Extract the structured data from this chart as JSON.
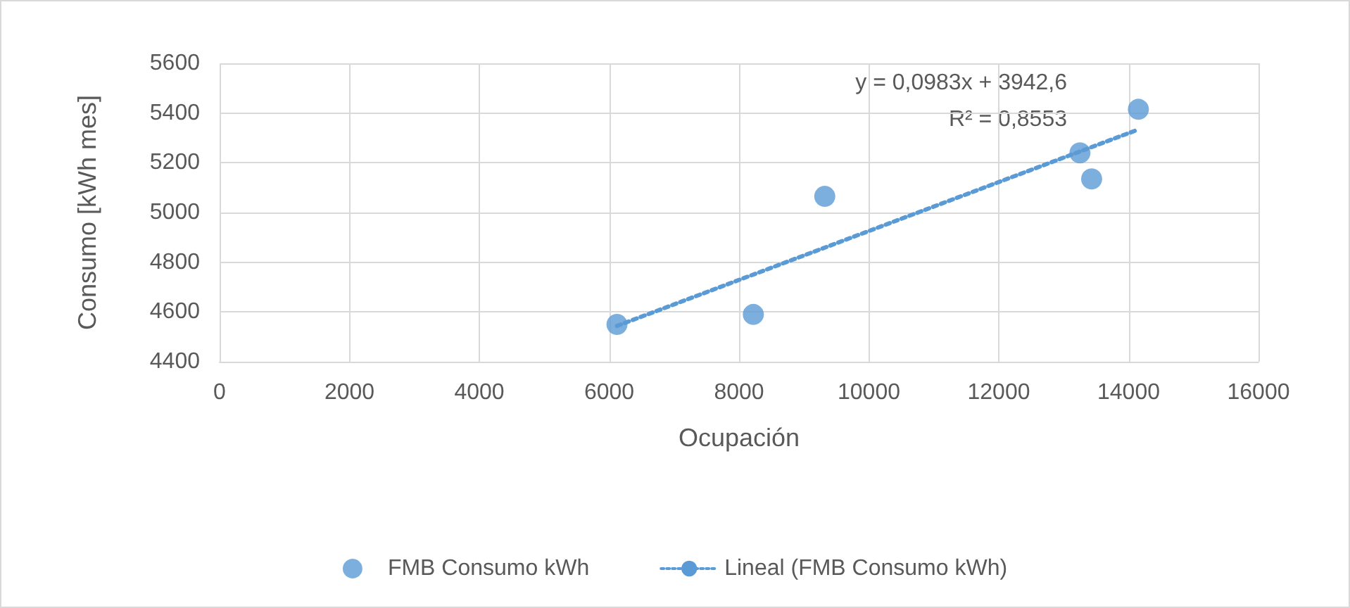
{
  "chart_data": {
    "type": "scatter",
    "xlabel": "Ocupación",
    "ylabel": "Consumo [kWh mes]",
    "xlim": [
      0,
      16000
    ],
    "xticks": [
      0,
      2000,
      4000,
      6000,
      8000,
      10000,
      12000,
      14000,
      16000
    ],
    "ylim": [
      4400,
      5600
    ],
    "yticks": [
      4400,
      4600,
      4800,
      5000,
      5200,
      5400,
      5600
    ],
    "grid": true,
    "legend": "bottom",
    "marker": "circle",
    "annotations": [
      "y = 0,0983x + 3942,6",
      "R² = 0,8553"
    ],
    "series": [
      {
        "name": "FMB Consumo kWh",
        "color": "#5b9bd5",
        "x": [
          6120,
          8220,
          9320,
          13250,
          13430,
          14150
        ],
        "values": [
          4550,
          4590,
          5065,
          5240,
          5135,
          5415
        ]
      },
      {
        "name": "Lineal (FMB Consumo kWh)",
        "type": "line",
        "line_style": "dotted",
        "marker": "none",
        "color": "#5b9bd5",
        "x": [
          6120,
          14150
        ],
        "values": [
          4544,
          5334
        ]
      }
    ]
  }
}
